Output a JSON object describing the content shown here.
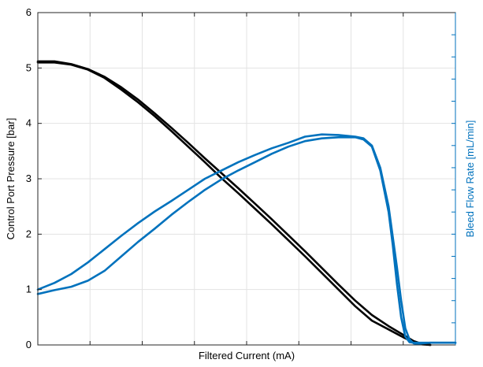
{
  "chart_data": {
    "type": "line",
    "title": "",
    "xlabel": "Filtered Current (mA)",
    "ylabel": "Control Port Pressure [bar]",
    "y2label": "Bleed Flow Rate [mL/min]",
    "xlim": [
      0,
      100
    ],
    "ylim": [
      0,
      6
    ],
    "y2lim": [
      0,
      6
    ],
    "yticks": [
      "0",
      "1",
      "2",
      "3",
      "4",
      "5",
      "6"
    ],
    "x_tick_count": 8,
    "y2_tick_count": 15,
    "grid": true,
    "colors": {
      "pressure": "#000000",
      "flow": "#0072BD",
      "grid": "#e3e3e3",
      "axis": "#262626"
    },
    "series": [
      {
        "axis": "left",
        "color": "#000000",
        "x": [
          0,
          4,
          8,
          12,
          16,
          20,
          24,
          28,
          32,
          36,
          40,
          44,
          48,
          52,
          56,
          60,
          64,
          68,
          72,
          76,
          80,
          84,
          88,
          90,
          92,
          94
        ],
        "y": [
          5.12,
          5.12,
          5.07,
          4.98,
          4.84,
          4.65,
          4.43,
          4.18,
          3.92,
          3.65,
          3.37,
          3.1,
          2.83,
          2.55,
          2.27,
          1.98,
          1.69,
          1.39,
          1.09,
          0.8,
          0.54,
          0.34,
          0.16,
          0.07,
          0.02,
          0.0
        ]
      },
      {
        "axis": "left",
        "color": "#000000",
        "x": [
          0,
          4,
          8,
          12,
          16,
          20,
          24,
          28,
          32,
          36,
          40,
          44,
          48,
          52,
          56,
          60,
          64,
          68,
          72,
          76,
          80,
          84,
          88,
          90,
          92,
          94
        ],
        "y": [
          5.1,
          5.1,
          5.06,
          4.97,
          4.82,
          4.61,
          4.38,
          4.13,
          3.86,
          3.58,
          3.3,
          3.01,
          2.74,
          2.46,
          2.18,
          1.89,
          1.6,
          1.3,
          1.0,
          0.7,
          0.44,
          0.28,
          0.12,
          0.05,
          0.01,
          0.0
        ]
      },
      {
        "axis": "right",
        "color": "#0072BD",
        "x": [
          0,
          4,
          8,
          12,
          16,
          20,
          24,
          28,
          32,
          36,
          40,
          44,
          48,
          52,
          56,
          60,
          64,
          68,
          72,
          76,
          78,
          80,
          82,
          84,
          86,
          87,
          88,
          89,
          90,
          91,
          92,
          94,
          96,
          100
        ],
        "y": [
          1.0,
          1.12,
          1.28,
          1.49,
          1.73,
          1.97,
          2.2,
          2.41,
          2.6,
          2.8,
          3.0,
          3.15,
          3.3,
          3.43,
          3.55,
          3.65,
          3.76,
          3.8,
          3.79,
          3.76,
          3.73,
          3.6,
          3.2,
          2.5,
          1.4,
          0.8,
          0.3,
          0.1,
          0.03,
          0.02,
          0.03,
          0.04,
          0.04,
          0.04
        ]
      },
      {
        "axis": "right",
        "color": "#0072BD",
        "x": [
          0,
          4,
          8,
          12,
          16,
          20,
          24,
          28,
          32,
          36,
          40,
          44,
          48,
          52,
          56,
          60,
          64,
          68,
          72,
          76,
          78,
          80,
          82,
          84,
          85,
          86,
          87,
          88,
          89,
          90,
          92,
          96,
          100
        ],
        "y": [
          0.92,
          0.99,
          1.05,
          1.16,
          1.34,
          1.6,
          1.86,
          2.1,
          2.35,
          2.58,
          2.8,
          2.99,
          3.15,
          3.3,
          3.45,
          3.58,
          3.68,
          3.73,
          3.75,
          3.75,
          3.71,
          3.58,
          3.15,
          2.4,
          1.8,
          1.1,
          0.5,
          0.15,
          0.05,
          0.04,
          0.04,
          0.04,
          0.04
        ]
      }
    ]
  }
}
